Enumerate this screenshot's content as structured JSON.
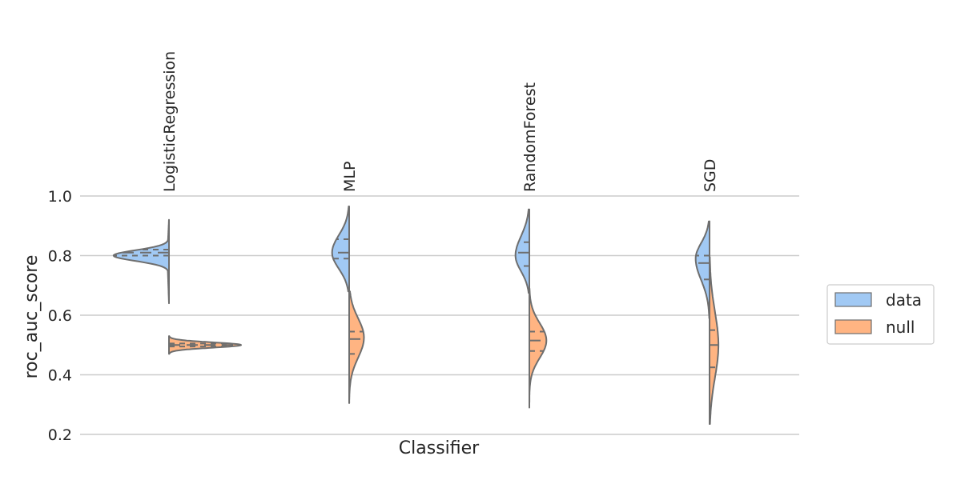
{
  "chart_data": {
    "type": "violin",
    "split": true,
    "xlabel": "Classifier",
    "ylabel": "roc_auc_score",
    "ylim": [
      0.2,
      1.0
    ],
    "yticks": [
      0.2,
      0.4,
      0.6,
      0.8,
      1.0
    ],
    "ytick_labels": [
      "0.2",
      "0.4",
      "0.6",
      "0.8",
      "1.0"
    ],
    "grid": "horizontal",
    "legend_position": "right",
    "categories": [
      "LogisticRegression",
      "MLP",
      "RandomForest",
      "SGD"
    ],
    "series": [
      {
        "name": "data",
        "color": "#a1c9f4",
        "side": "left",
        "distributions": [
          {
            "min": 0.64,
            "max": 0.92,
            "q1": 0.8,
            "median": 0.81,
            "q3": 0.82,
            "mode": 0.8
          },
          {
            "min": 0.68,
            "max": 0.965,
            "q1": 0.79,
            "median": 0.81,
            "q3": 0.855,
            "mode": 0.81
          },
          {
            "min": 0.675,
            "max": 0.955,
            "q1": 0.765,
            "median": 0.81,
            "q3": 0.845,
            "mode": 0.8
          },
          {
            "min": 0.59,
            "max": 0.915,
            "q1": 0.72,
            "median": 0.775,
            "q3": 0.8,
            "mode": 0.79
          }
        ]
      },
      {
        "name": "null",
        "color": "#ffb482",
        "side": "right",
        "distributions": [
          {
            "min": 0.47,
            "max": 0.53,
            "q1": 0.495,
            "median": 0.5,
            "q3": 0.505,
            "mode": 0.5
          },
          {
            "min": 0.305,
            "max": 0.68,
            "q1": 0.47,
            "median": 0.52,
            "q3": 0.545,
            "mode": 0.525
          },
          {
            "min": 0.29,
            "max": 0.69,
            "q1": 0.48,
            "median": 0.515,
            "q3": 0.545,
            "mode": 0.515
          },
          {
            "min": 0.235,
            "max": 0.795,
            "q1": 0.425,
            "median": 0.5,
            "q3": 0.55,
            "mode": 0.5
          }
        ]
      }
    ]
  },
  "style": {
    "outline_color": "#6e6e6e",
    "grid_color": "#cccccc"
  }
}
